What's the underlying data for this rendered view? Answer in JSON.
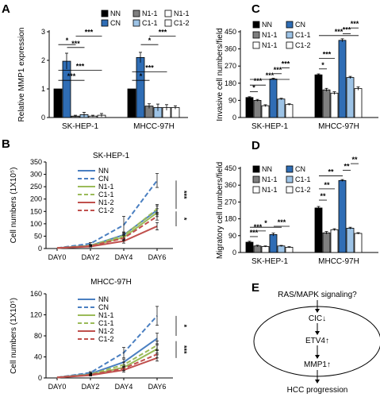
{
  "chart_data": [
    {
      "panel": "A",
      "type": "bar",
      "ylabel": "Relative MMP1 expression",
      "ylabel_italic": "MMP1",
      "groups": [
        "SK-HEP-1",
        "MHCC-97H"
      ],
      "series": [
        {
          "name": "NN",
          "color": "#000000",
          "values": [
            1.0,
            1.0
          ],
          "errors": [
            0.0,
            0.0
          ]
        },
        {
          "name": "CN",
          "color": "#2f6db5",
          "values": [
            1.97,
            2.1
          ],
          "errors": [
            0.28,
            0.18
          ]
        },
        {
          "name": "N1-1",
          "color": "#7f7f7f",
          "values": [
            0.05,
            0.4
          ],
          "errors": [
            0.03,
            0.08
          ]
        },
        {
          "name": "C1-1",
          "color": "#9dc3e6",
          "values": [
            0.1,
            0.35
          ],
          "errors": [
            0.08,
            0.12
          ]
        },
        {
          "name": "N1-1",
          "color": "#ffffff",
          "values": [
            0.05,
            0.35
          ],
          "errors": [
            0.03,
            0.1
          ]
        },
        {
          "name": "C1-2",
          "color": "#ffffff",
          "values": [
            0.08,
            0.35
          ],
          "errors": [
            0.06,
            0.06
          ]
        }
      ],
      "ylim": [
        0,
        3
      ],
      "yticks": [
        0,
        1,
        2,
        3
      ],
      "sig_labels": [
        "*",
        "***",
        "***",
        "***",
        "***",
        "*",
        "***",
        "*",
        "***"
      ]
    },
    {
      "panel": "C",
      "type": "bar",
      "ylabel": "Invasive cell numbers/field",
      "groups": [
        "SK-HEP-1",
        "MHCC-97H"
      ],
      "series": [
        {
          "name": "NN",
          "color": "#000000",
          "values": [
            105,
            224
          ],
          "errors": [
            4,
            5
          ]
        },
        {
          "name": "N1-1",
          "color": "#7f7f7f",
          "values": [
            90,
            145
          ],
          "errors": [
            5,
            8
          ]
        },
        {
          "name": "N1-1",
          "color": "#ffffff",
          "values": [
            62,
            128
          ],
          "errors": [
            5,
            7
          ]
        },
        {
          "name": "CN",
          "color": "#2f6db5",
          "values": [
            202,
            405
          ],
          "errors": [
            4,
            8
          ]
        },
        {
          "name": "C1-1",
          "color": "#9dc3e6",
          "values": [
            97,
            210
          ],
          "errors": [
            4,
            6
          ]
        },
        {
          "name": "C1-2",
          "color": "#ffffff",
          "values": [
            68,
            152
          ],
          "errors": [
            4,
            9
          ]
        }
      ],
      "ylim": [
        0,
        450
      ],
      "yticks": [
        0,
        90,
        180,
        270,
        360,
        450
      ],
      "sig_labels": [
        "*",
        "***",
        "***",
        "***",
        "***",
        "*",
        "***",
        "***",
        "***",
        "***"
      ]
    },
    {
      "panel": "D",
      "type": "bar",
      "ylabel": "Migratory cell numbers/field",
      "groups": [
        "SK-HEP-1",
        "MHCC-97H"
      ],
      "series": [
        {
          "name": "NN",
          "color": "#000000",
          "values": [
            55,
            238
          ],
          "errors": [
            5,
            8
          ]
        },
        {
          "name": "N1-1",
          "color": "#7f7f7f",
          "values": [
            35,
            105
          ],
          "errors": [
            4,
            7
          ]
        },
        {
          "name": "N1-1",
          "color": "#ffffff",
          "values": [
            32,
            122
          ],
          "errors": [
            3,
            5
          ]
        },
        {
          "name": "CN",
          "color": "#2f6db5",
          "values": [
            96,
            385
          ],
          "errors": [
            8,
            5
          ]
        },
        {
          "name": "C1-1",
          "color": "#9dc3e6",
          "values": [
            35,
            130
          ],
          "errors": [
            3,
            5
          ]
        },
        {
          "name": "C1-2",
          "color": "#ffffff",
          "values": [
            28,
            102
          ],
          "errors": [
            3,
            4
          ]
        }
      ],
      "ylim": [
        0,
        450
      ],
      "yticks": [
        0,
        90,
        180,
        270,
        360,
        450
      ],
      "sig_labels": [
        "***",
        "*",
        "***",
        "***",
        "**",
        "**",
        "**",
        "**",
        "**"
      ]
    },
    {
      "panel": "B",
      "type": "line",
      "title": "SK-HEP-1",
      "ylabel": "Cell numbers (1X10⁵)",
      "x": [
        "DAY0",
        "DAY2",
        "DAY4",
        "DAY6"
      ],
      "ylim": [
        0,
        350
      ],
      "yticks": [
        0,
        50,
        100,
        150,
        200,
        250,
        300,
        350
      ],
      "series": [
        {
          "name": "NN",
          "color": "#4a7fc1",
          "dash": false,
          "values": [
            2,
            12,
            55,
            155
          ],
          "errors": [
            0,
            3,
            12,
            18
          ]
        },
        {
          "name": "CN",
          "color": "#4a7fc1",
          "dash": true,
          "values": [
            2,
            20,
            95,
            275
          ],
          "errors": [
            0,
            4,
            35,
            28
          ]
        },
        {
          "name": "N1-1",
          "color": "#9bbb59",
          "dash": false,
          "values": [
            2,
            10,
            45,
            145
          ],
          "errors": [
            0,
            3,
            10,
            16
          ]
        },
        {
          "name": "C1-1",
          "color": "#9bbb59",
          "dash": true,
          "values": [
            2,
            12,
            52,
            160
          ],
          "errors": [
            0,
            3,
            12,
            18
          ]
        },
        {
          "name": "N1-2",
          "color": "#c0504d",
          "dash": false,
          "values": [
            2,
            8,
            30,
            90
          ],
          "errors": [
            0,
            2,
            8,
            15
          ]
        },
        {
          "name": "C1-2",
          "color": "#c0504d",
          "dash": true,
          "values": [
            2,
            10,
            42,
            130
          ],
          "errors": [
            0,
            3,
            10,
            15
          ]
        }
      ],
      "sig_labels": [
        "***",
        "*"
      ]
    },
    {
      "panel": "B",
      "type": "line",
      "title": "MHCC-97H",
      "ylabel": "Cell numbers (1X10⁵)",
      "x": [
        "DAY0",
        "DAY2",
        "DAY4",
        "DAY6"
      ],
      "ylim": [
        0,
        160
      ],
      "yticks": [
        0,
        40,
        80,
        120,
        160
      ],
      "series": [
        {
          "name": "NN",
          "color": "#4a7fc1",
          "dash": false,
          "values": [
            1,
            8,
            30,
            75
          ],
          "errors": [
            0,
            2,
            6,
            10
          ]
        },
        {
          "name": "CN",
          "color": "#4a7fc1",
          "dash": true,
          "values": [
            1,
            10,
            48,
            118
          ],
          "errors": [
            0,
            2,
            10,
            18
          ]
        },
        {
          "name": "N1-1",
          "color": "#9bbb59",
          "dash": false,
          "values": [
            1,
            6,
            20,
            55
          ],
          "errors": [
            0,
            2,
            5,
            8
          ]
        },
        {
          "name": "C1-1",
          "color": "#9bbb59",
          "dash": true,
          "values": [
            1,
            7,
            25,
            62
          ],
          "errors": [
            0,
            2,
            5,
            8
          ]
        },
        {
          "name": "N1-2",
          "color": "#c0504d",
          "dash": false,
          "values": [
            1,
            5,
            15,
            38
          ],
          "errors": [
            0,
            1,
            4,
            6
          ]
        },
        {
          "name": "C1-2",
          "color": "#c0504d",
          "dash": true,
          "values": [
            1,
            6,
            18,
            45
          ],
          "errors": [
            0,
            1,
            4,
            7
          ]
        }
      ],
      "sig_labels": [
        "*",
        "***"
      ]
    }
  ],
  "panels": {
    "A": {
      "letter": "A",
      "legend": [
        "NN",
        "N1-1",
        "N1-1",
        "CN",
        "C1-1",
        "C1-2"
      ]
    },
    "B": {
      "letter": "B"
    },
    "C": {
      "letter": "C",
      "legend": [
        "NN",
        "CN",
        "N1-1",
        "C1-1",
        "N1-1",
        "C1-2"
      ]
    },
    "D": {
      "letter": "D",
      "legend": [
        "NN",
        "CN",
        "N1-1",
        "C1-1",
        "N1-1",
        "C1-2"
      ]
    },
    "E": {
      "letter": "E",
      "top": "RAS/MAPK signaling?",
      "nodes": [
        "CIC↓",
        "ETV4↑",
        "MMP1↑"
      ],
      "bottom": "HCC progression"
    }
  }
}
